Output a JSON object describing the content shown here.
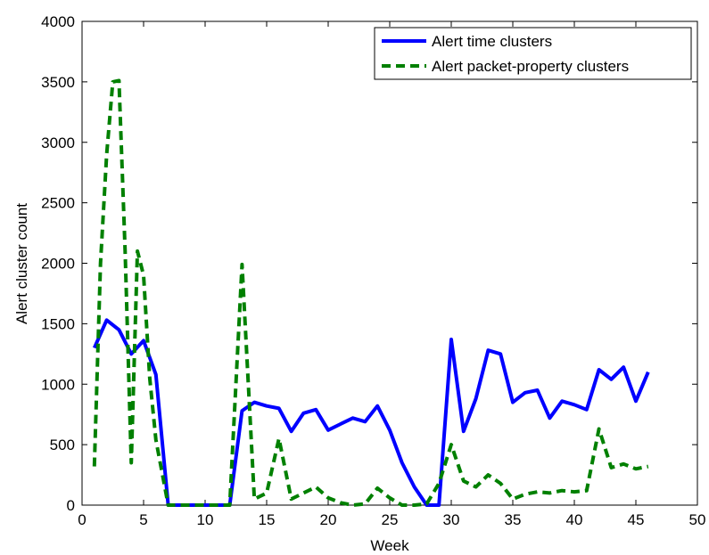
{
  "chart_data": {
    "type": "line",
    "xlabel": "Week",
    "ylabel": "Alert cluster count",
    "xlim": [
      0,
      50
    ],
    "ylim": [
      0,
      4000
    ],
    "xticks": [
      0,
      5,
      10,
      15,
      20,
      25,
      30,
      35,
      40,
      45,
      50
    ],
    "yticks": [
      0,
      500,
      1000,
      1500,
      2000,
      2500,
      3000,
      3500,
      4000
    ],
    "grid": false,
    "legend_position": "top-right",
    "series": [
      {
        "name": "Alert time clusters",
        "color": "#0000ff",
        "style": "solid",
        "x": [
          1,
          2,
          3,
          4,
          5,
          6,
          7,
          8,
          9,
          10,
          11,
          12,
          13,
          14,
          15,
          16,
          17,
          18,
          19,
          20,
          21,
          22,
          23,
          24,
          25,
          26,
          27,
          28,
          29,
          30,
          31,
          32,
          33,
          34,
          35,
          36,
          37,
          38,
          39,
          40,
          41,
          42,
          43,
          44,
          45,
          46
        ],
        "y": [
          1300,
          1530,
          1450,
          1250,
          1360,
          1080,
          0,
          0,
          0,
          0,
          0,
          0,
          780,
          850,
          820,
          800,
          610,
          760,
          790,
          620,
          670,
          720,
          690,
          820,
          620,
          350,
          150,
          0,
          0,
          1370,
          610,
          880,
          1280,
          1250,
          850,
          930,
          950,
          720,
          860,
          830,
          790,
          1120,
          1040,
          1140,
          860,
          1100
        ]
      },
      {
        "name": "Alert packet-property clusters",
        "color": "#008000",
        "style": "dashed",
        "x": [
          1,
          1.5,
          2,
          2.5,
          3,
          3.5,
          4,
          4.5,
          5,
          5.5,
          6,
          7,
          8,
          9,
          10,
          11,
          12,
          13,
          14,
          15,
          16,
          17,
          18,
          19,
          20,
          21,
          22,
          23,
          24,
          25,
          26,
          27,
          28,
          29,
          30,
          31,
          32,
          33,
          34,
          35,
          36,
          37,
          38,
          39,
          40,
          41,
          42,
          43,
          44,
          45,
          46
        ],
        "y": [
          320,
          2000,
          2900,
          3500,
          3510,
          2100,
          350,
          2100,
          1900,
          1050,
          540,
          0,
          0,
          0,
          0,
          0,
          0,
          1990,
          50,
          100,
          550,
          50,
          100,
          150,
          60,
          20,
          0,
          10,
          140,
          60,
          0,
          0,
          10,
          180,
          500,
          200,
          150,
          250,
          180,
          50,
          90,
          110,
          100,
          120,
          110,
          120,
          630,
          310,
          340,
          300,
          320
        ]
      }
    ]
  }
}
